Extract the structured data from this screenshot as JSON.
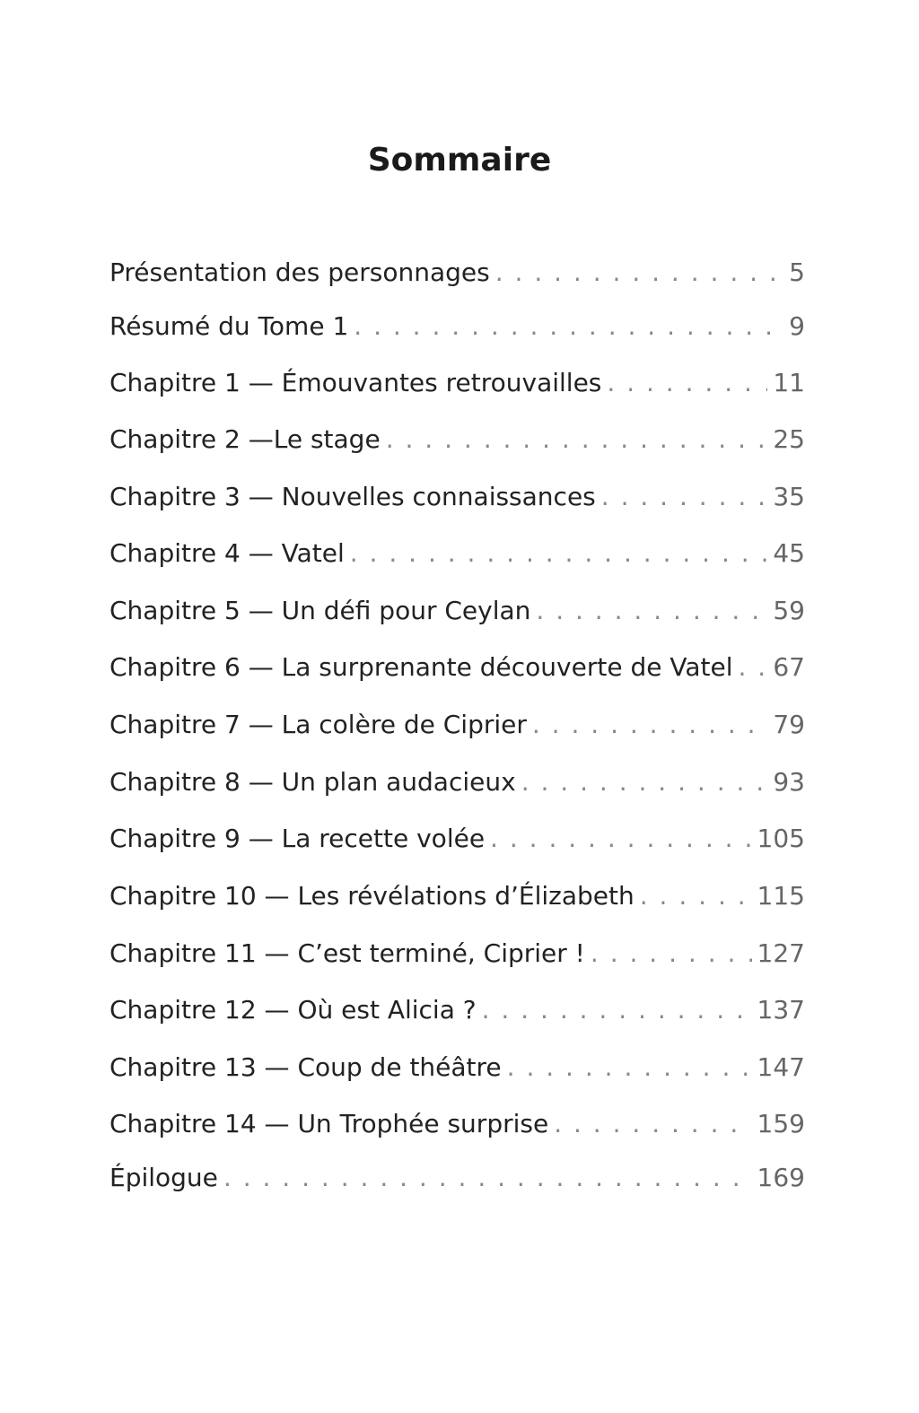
{
  "title": "Sommaire",
  "entries": [
    {
      "label": "Présentation des personnages",
      "page": "5"
    },
    {
      "label": "Résumé du Tome 1",
      "page": "9"
    },
    {
      "label": "Chapitre 1 — Émouvantes retrouvailles",
      "page": "11"
    },
    {
      "label": "Chapitre 2 —Le stage",
      "page": "25"
    },
    {
      "label": "Chapitre 3 — Nouvelles connaissances",
      "page": "35"
    },
    {
      "label": "Chapitre 4 — Vatel",
      "page": "45"
    },
    {
      "label": "Chapitre 5 — Un défi pour Ceylan",
      "page": "59"
    },
    {
      "label": "Chapitre 6 — La surprenante découverte de Vatel",
      "page": "67"
    },
    {
      "label": "Chapitre 7 — La colère de Ciprier",
      "page": "79"
    },
    {
      "label": "Chapitre 8 — Un plan audacieux",
      "page": "93"
    },
    {
      "label": "Chapitre 9 — La recette volée",
      "page": "105"
    },
    {
      "label": "Chapitre 10 — Les révélations d’Élizabeth",
      "page": "115"
    },
    {
      "label": "Chapitre 11 — C’est terminé, Ciprier !",
      "page": "127"
    },
    {
      "label": "Chapitre 12 — Où est Alicia ?",
      "page": "137"
    },
    {
      "label": "Chapitre 13 — Coup de théâtre",
      "page": "147"
    },
    {
      "label": "Chapitre 14 — Un Trophée surprise",
      "page": "159"
    },
    {
      "label": "Épilogue",
      "page": "169"
    }
  ]
}
